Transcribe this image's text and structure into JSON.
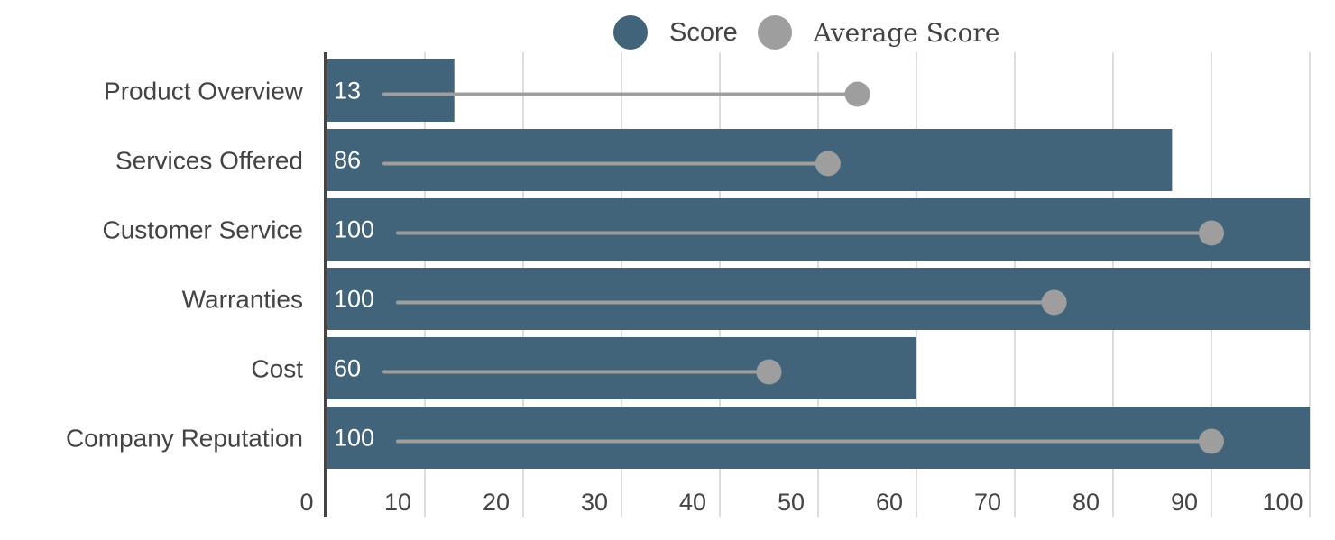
{
  "legend": {
    "score_label": "Score",
    "average_label": "Average Score"
  },
  "colors": {
    "score": "#41647a",
    "average": "#9e9e9e",
    "grid": "#dddddd",
    "axis": "#444444",
    "text": "#444444",
    "bar_text": "#ffffff"
  },
  "chart_data": {
    "type": "bar",
    "orientation": "horizontal",
    "categories": [
      "Product Overview",
      "Services Offered",
      "Customer Service",
      "Warranties",
      "Cost",
      "Company Reputation"
    ],
    "series": [
      {
        "name": "Score",
        "values": [
          13,
          86,
          100,
          100,
          60,
          100
        ]
      },
      {
        "name": "Average Score",
        "values": [
          54,
          51,
          90,
          74,
          45,
          90
        ]
      }
    ],
    "data_labels": [
      "13",
      "86",
      "100",
      "100",
      "60",
      "100"
    ],
    "xlim": [
      0,
      100
    ],
    "xticks": [
      0,
      10,
      20,
      30,
      40,
      50,
      60,
      70,
      80,
      90,
      100
    ],
    "grid": true,
    "legend_position": "top"
  }
}
